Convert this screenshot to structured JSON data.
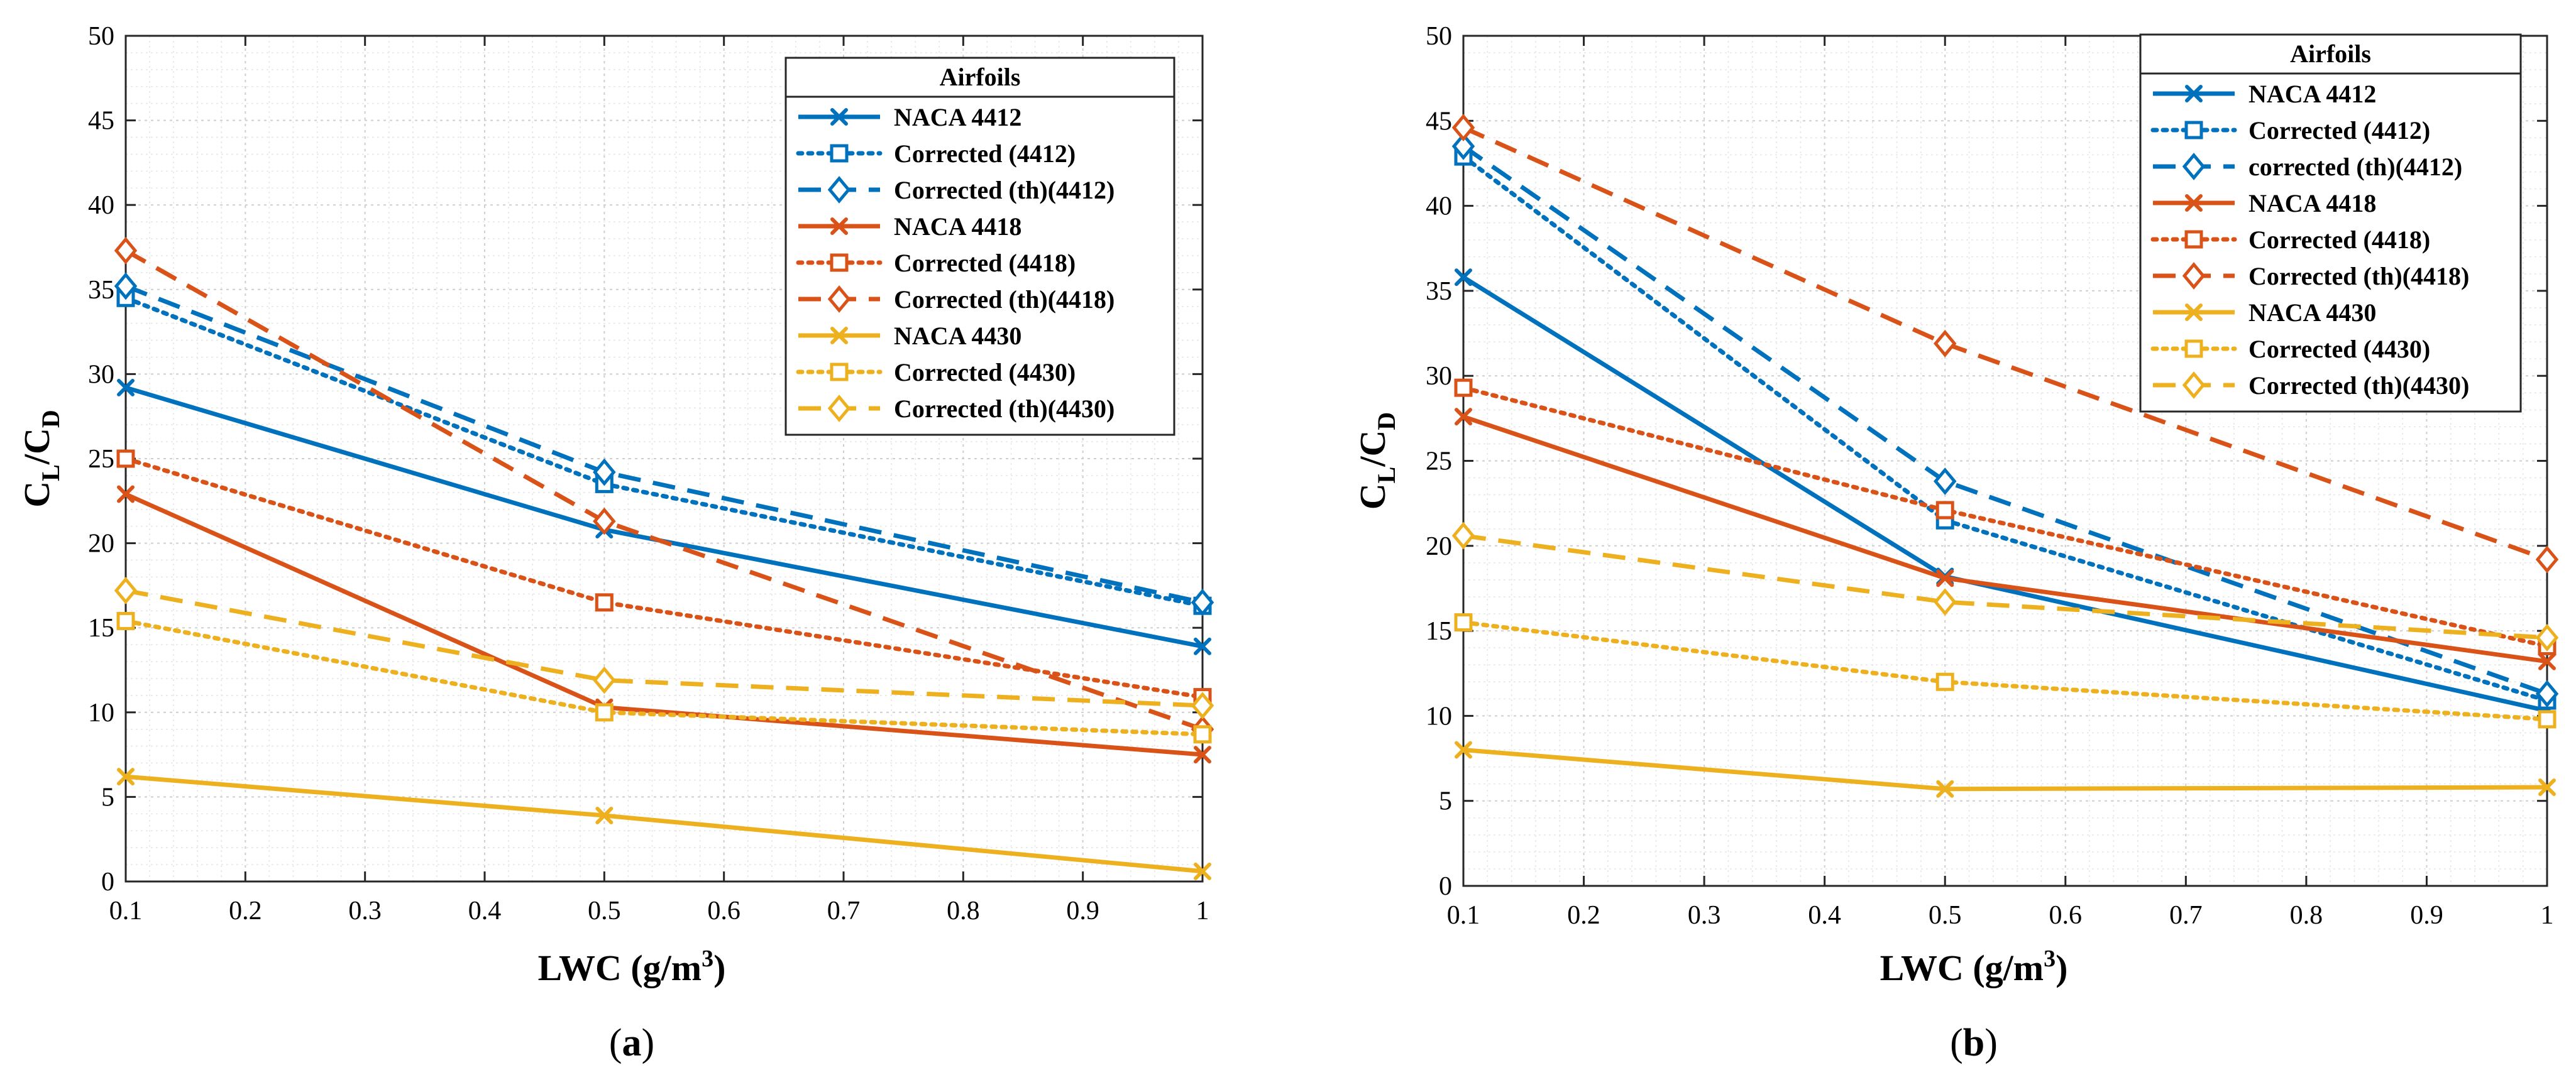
{
  "figure": {
    "panel_labels": [
      "(a)",
      "(b)"
    ]
  },
  "styles": {
    "series": [
      {
        "color": "#0072BD",
        "dash": "solid",
        "marker": "x"
      },
      {
        "color": "#0072BD",
        "dash": "dotted",
        "marker": "square"
      },
      {
        "color": "#0072BD",
        "dash": "dashed",
        "marker": "diamond"
      },
      {
        "color": "#D95319",
        "dash": "solid",
        "marker": "x"
      },
      {
        "color": "#D95319",
        "dash": "dotted",
        "marker": "square"
      },
      {
        "color": "#D95319",
        "dash": "dashed",
        "marker": "diamond"
      },
      {
        "color": "#EDB120",
        "dash": "solid",
        "marker": "x"
      },
      {
        "color": "#EDB120",
        "dash": "dotted",
        "marker": "square"
      },
      {
        "color": "#EDB120",
        "dash": "dashed",
        "marker": "diamond"
      }
    ]
  },
  "chart_data": [
    {
      "type": "line",
      "panel": "(a)",
      "title": "",
      "xlabel": "LWC (g/m3)",
      "ylabel": "CL/CD",
      "xlim": [
        0.1,
        1
      ],
      "ylim": [
        0,
        50
      ],
      "xticks": [
        "0.1",
        "0.2",
        "0.3",
        "0.4",
        "0.5",
        "0.6",
        "0.7",
        "0.8",
        "0.9",
        "1"
      ],
      "yticks": [
        "0",
        "5",
        "10",
        "15",
        "20",
        "25",
        "30",
        "35",
        "40",
        "45",
        "50"
      ],
      "grid": true,
      "legend": {
        "title": "Airfoils",
        "placement": "top-right"
      },
      "x": [
        0.1,
        0.5,
        1
      ],
      "series": [
        {
          "name": "NACA 4412",
          "values": [
            29.2,
            20.8,
            13.9
          ]
        },
        {
          "name": "Corrected (4412)",
          "values": [
            34.5,
            23.5,
            16.3
          ]
        },
        {
          "name": "Corrected (th)(4412)",
          "values": [
            35.2,
            24.2,
            16.5
          ]
        },
        {
          "name": "NACA 4418",
          "values": [
            22.9,
            10.3,
            7.5
          ]
        },
        {
          "name": "Corrected (4418)",
          "values": [
            25.0,
            16.5,
            10.9
          ]
        },
        {
          "name": "Corrected (th)(4418)",
          "values": [
            37.3,
            21.3,
            9.0
          ]
        },
        {
          "name": "NACA 4430",
          "values": [
            6.2,
            3.9,
            0.6
          ]
        },
        {
          "name": "Corrected (4430)",
          "values": [
            15.4,
            10.0,
            8.7
          ]
        },
        {
          "name": "Corrected (th)(4430)",
          "values": [
            17.2,
            11.9,
            10.4
          ]
        }
      ]
    },
    {
      "type": "line",
      "panel": "(b)",
      "title": "",
      "xlabel": "LWC (g/m3)",
      "ylabel": "CL/CD",
      "xlim": [
        0.1,
        1
      ],
      "ylim": [
        0,
        50
      ],
      "xticks": [
        "0.1",
        "0.2",
        "0.3",
        "0.4",
        "0.5",
        "0.6",
        "0.7",
        "0.8",
        "0.9",
        "1"
      ],
      "yticks": [
        "0",
        "5",
        "10",
        "15",
        "20",
        "25",
        "30",
        "35",
        "40",
        "45",
        "50"
      ],
      "grid": true,
      "legend": {
        "title": "Airfoils",
        "placement": "top-right"
      },
      "x": [
        0.1,
        0.5,
        1
      ],
      "series": [
        {
          "name": "NACA 4412",
          "values": [
            35.8,
            18.2,
            10.3
          ]
        },
        {
          "name": "Corrected (4412)",
          "values": [
            42.9,
            21.5,
            10.9
          ]
        },
        {
          "name": "corrected (th)(4412)",
          "values": [
            43.5,
            23.8,
            11.3
          ]
        },
        {
          "name": "NACA 4418",
          "values": [
            27.6,
            18.1,
            13.2
          ]
        },
        {
          "name": "Corrected (4418)",
          "values": [
            29.3,
            22.1,
            14.1
          ]
        },
        {
          "name": "Corrected (th)(4418)",
          "values": [
            44.6,
            31.9,
            19.2
          ]
        },
        {
          "name": "NACA 4430",
          "values": [
            8.0,
            5.7,
            5.8
          ]
        },
        {
          "name": "Corrected (4430)",
          "values": [
            15.5,
            12.0,
            9.8
          ]
        },
        {
          "name": "Corrected (th)(4430)",
          "values": [
            20.6,
            16.7,
            14.6
          ]
        }
      ]
    }
  ]
}
